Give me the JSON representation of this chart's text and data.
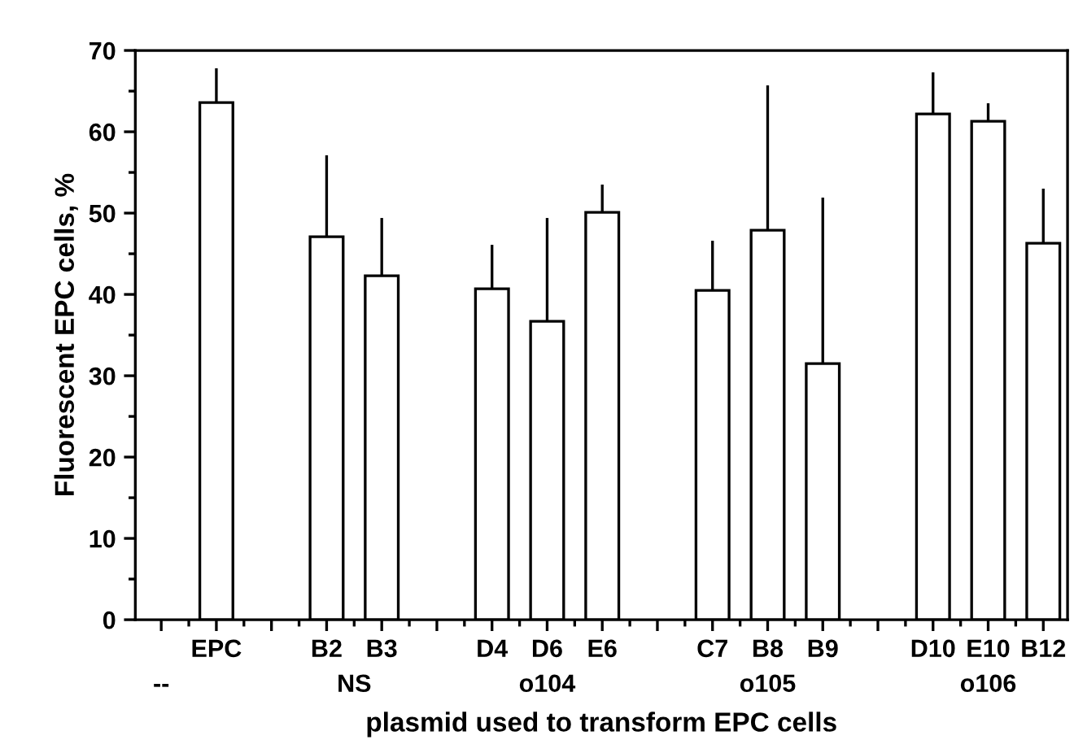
{
  "chart_data": {
    "type": "bar",
    "xlabel": "plasmid used to transform EPC cells",
    "ylabel": "Fluorescent EPC cells, %",
    "categories": [
      null,
      "EPC",
      null,
      "B2",
      "B3",
      null,
      "D4",
      "D6",
      "E6",
      null,
      "C7",
      "B8",
      "B9",
      null,
      "D10",
      "E10",
      "B12"
    ],
    "values": [
      null,
      63.6,
      null,
      47.1,
      42.3,
      null,
      40.7,
      36.7,
      50.1,
      null,
      40.5,
      47.9,
      31.5,
      null,
      62.2,
      61.3,
      46.3
    ],
    "errors": [
      null,
      [
        63.6,
        67.8
      ],
      null,
      [
        47.1,
        57.1
      ],
      [
        42.3,
        49.4
      ],
      null,
      [
        40.7,
        46.1
      ],
      [
        36.7,
        49.4
      ],
      [
        50.1,
        53.5
      ],
      null,
      [
        40.5,
        46.6
      ],
      [
        47.9,
        65.7
      ],
      [
        31.5,
        51.9
      ],
      null,
      [
        62.2,
        67.3
      ],
      [
        61.3,
        63.5
      ],
      [
        46.3,
        53
      ]
    ],
    "color": "#ffffff",
    "annotations": [
      "--",
      "NS",
      "o104",
      "o105",
      "o106"
    ],
    "ylim": [
      0,
      70
    ],
    "yticks": [
      0,
      10,
      20,
      30,
      40,
      50,
      60,
      70
    ],
    "grid": false,
    "legend": false
  }
}
